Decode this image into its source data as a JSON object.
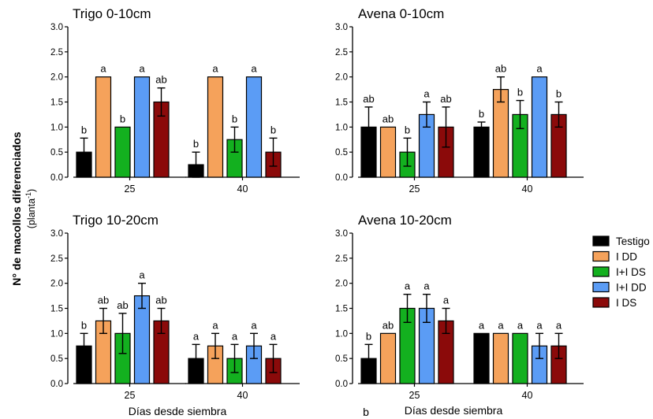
{
  "figure": {
    "ylabel_main": "N° de macollos diferenciados",
    "ylabel_unit_prefix": "(planta",
    "ylabel_unit_sup": "-1",
    "ylabel_unit_suffix": ")",
    "xlabel": "Días desde siembra",
    "stray_label": "b"
  },
  "legend": {
    "placement": "right",
    "items": [
      {
        "label": "Testigo",
        "color": "#000000"
      },
      {
        "label": "I DD",
        "color": "#f5a25b"
      },
      {
        "label": "I+I DS",
        "color": "#13b01f"
      },
      {
        "label": "I+I DD",
        "color": "#5b9cf5"
      },
      {
        "label": "I DS",
        "color": "#8b0a0a"
      }
    ]
  },
  "chart_data": [
    {
      "type": "bar",
      "title": "Trigo 0-10cm",
      "categories": [
        "25",
        "40"
      ],
      "ylim": [
        0,
        3
      ],
      "yticks": [
        "0.0",
        "0.5",
        "1.0",
        "1.5",
        "2.0",
        "2.5",
        "3.0"
      ],
      "series": [
        {
          "name": "Testigo",
          "values": [
            0.5,
            0.25
          ],
          "errors": [
            0.28,
            0.25
          ],
          "letters": [
            "b",
            "b"
          ]
        },
        {
          "name": "I DD",
          "values": [
            2.0,
            2.0
          ],
          "errors": [
            0,
            0
          ],
          "letters": [
            "a",
            "a"
          ]
        },
        {
          "name": "I+I DS",
          "values": [
            1.0,
            0.75
          ],
          "errors": [
            0,
            0.25
          ],
          "letters": [
            "b",
            "b"
          ]
        },
        {
          "name": "I+I DD",
          "values": [
            2.0,
            2.0
          ],
          "errors": [
            0,
            0
          ],
          "letters": [
            "a",
            "a"
          ]
        },
        {
          "name": "I DS",
          "values": [
            1.5,
            0.5
          ],
          "errors": [
            0.28,
            0.28
          ],
          "letters": [
            "ab",
            "b"
          ]
        }
      ]
    },
    {
      "type": "bar",
      "title": "Avena 0-10cm",
      "categories": [
        "25",
        "40"
      ],
      "ylim": [
        0,
        3
      ],
      "yticks": [
        "0.0",
        "0.5",
        "1.0",
        "1.5",
        "2.0",
        "2.5",
        "3.0"
      ],
      "series": [
        {
          "name": "Testigo",
          "values": [
            1.0,
            1.0
          ],
          "errors": [
            0.4,
            0.1
          ],
          "letters": [
            "ab",
            "b"
          ]
        },
        {
          "name": "I DD",
          "values": [
            1.0,
            1.75
          ],
          "errors": [
            0,
            0.25
          ],
          "letters": [
            "ab",
            "ab"
          ]
        },
        {
          "name": "I+I DS",
          "values": [
            0.5,
            1.25
          ],
          "errors": [
            0.28,
            0.28
          ],
          "letters": [
            "b",
            "b"
          ]
        },
        {
          "name": "I+I DD",
          "values": [
            1.25,
            2.0
          ],
          "errors": [
            0.25,
            0
          ],
          "letters": [
            "a",
            "a"
          ]
        },
        {
          "name": "I DS",
          "values": [
            1.0,
            1.25
          ],
          "errors": [
            0.4,
            0.25
          ],
          "letters": [
            "ab",
            "b"
          ]
        }
      ]
    },
    {
      "type": "bar",
      "title": "Trigo 10-20cm",
      "categories": [
        "25",
        "40"
      ],
      "ylim": [
        0,
        3
      ],
      "yticks": [
        "0.0",
        "0.5",
        "1.0",
        "1.5",
        "2.0",
        "2.5",
        "3.0"
      ],
      "series": [
        {
          "name": "Testigo",
          "values": [
            0.75,
            0.5
          ],
          "errors": [
            0.25,
            0.28
          ],
          "letters": [
            "b",
            "a"
          ]
        },
        {
          "name": "I DD",
          "values": [
            1.25,
            0.75
          ],
          "errors": [
            0.25,
            0.25
          ],
          "letters": [
            "ab",
            "a"
          ]
        },
        {
          "name": "I+I DS",
          "values": [
            1.0,
            0.5
          ],
          "errors": [
            0.4,
            0.28
          ],
          "letters": [
            "ab",
            "a"
          ]
        },
        {
          "name": "I+I DD",
          "values": [
            1.75,
            0.75
          ],
          "errors": [
            0.25,
            0.25
          ],
          "letters": [
            "a",
            "a"
          ]
        },
        {
          "name": "I DS",
          "values": [
            1.25,
            0.5
          ],
          "errors": [
            0.25,
            0.28
          ],
          "letters": [
            "ab",
            "a"
          ]
        }
      ]
    },
    {
      "type": "bar",
      "title": "Avena 10-20cm",
      "categories": [
        "25",
        "40"
      ],
      "ylim": [
        0,
        3
      ],
      "yticks": [
        "0.0",
        "0.5",
        "1.0",
        "1.5",
        "2.0",
        "2.5",
        "3.0"
      ],
      "series": [
        {
          "name": "Testigo",
          "values": [
            0.5,
            1.0
          ],
          "errors": [
            0.28,
            0
          ],
          "letters": [
            "b",
            "a"
          ]
        },
        {
          "name": "I DD",
          "values": [
            1.0,
            1.0
          ],
          "errors": [
            0,
            0
          ],
          "letters": [
            "ab",
            "a"
          ]
        },
        {
          "name": "I+I DS",
          "values": [
            1.5,
            1.0
          ],
          "errors": [
            0.28,
            0
          ],
          "letters": [
            "a",
            "a"
          ]
        },
        {
          "name": "I+I DD",
          "values": [
            1.5,
            0.75
          ],
          "errors": [
            0.28,
            0.25
          ],
          "letters": [
            "a",
            "a"
          ]
        },
        {
          "name": "I DS",
          "values": [
            1.25,
            0.75
          ],
          "errors": [
            0.25,
            0.25
          ],
          "letters": [
            "a",
            "a"
          ]
        }
      ]
    }
  ]
}
